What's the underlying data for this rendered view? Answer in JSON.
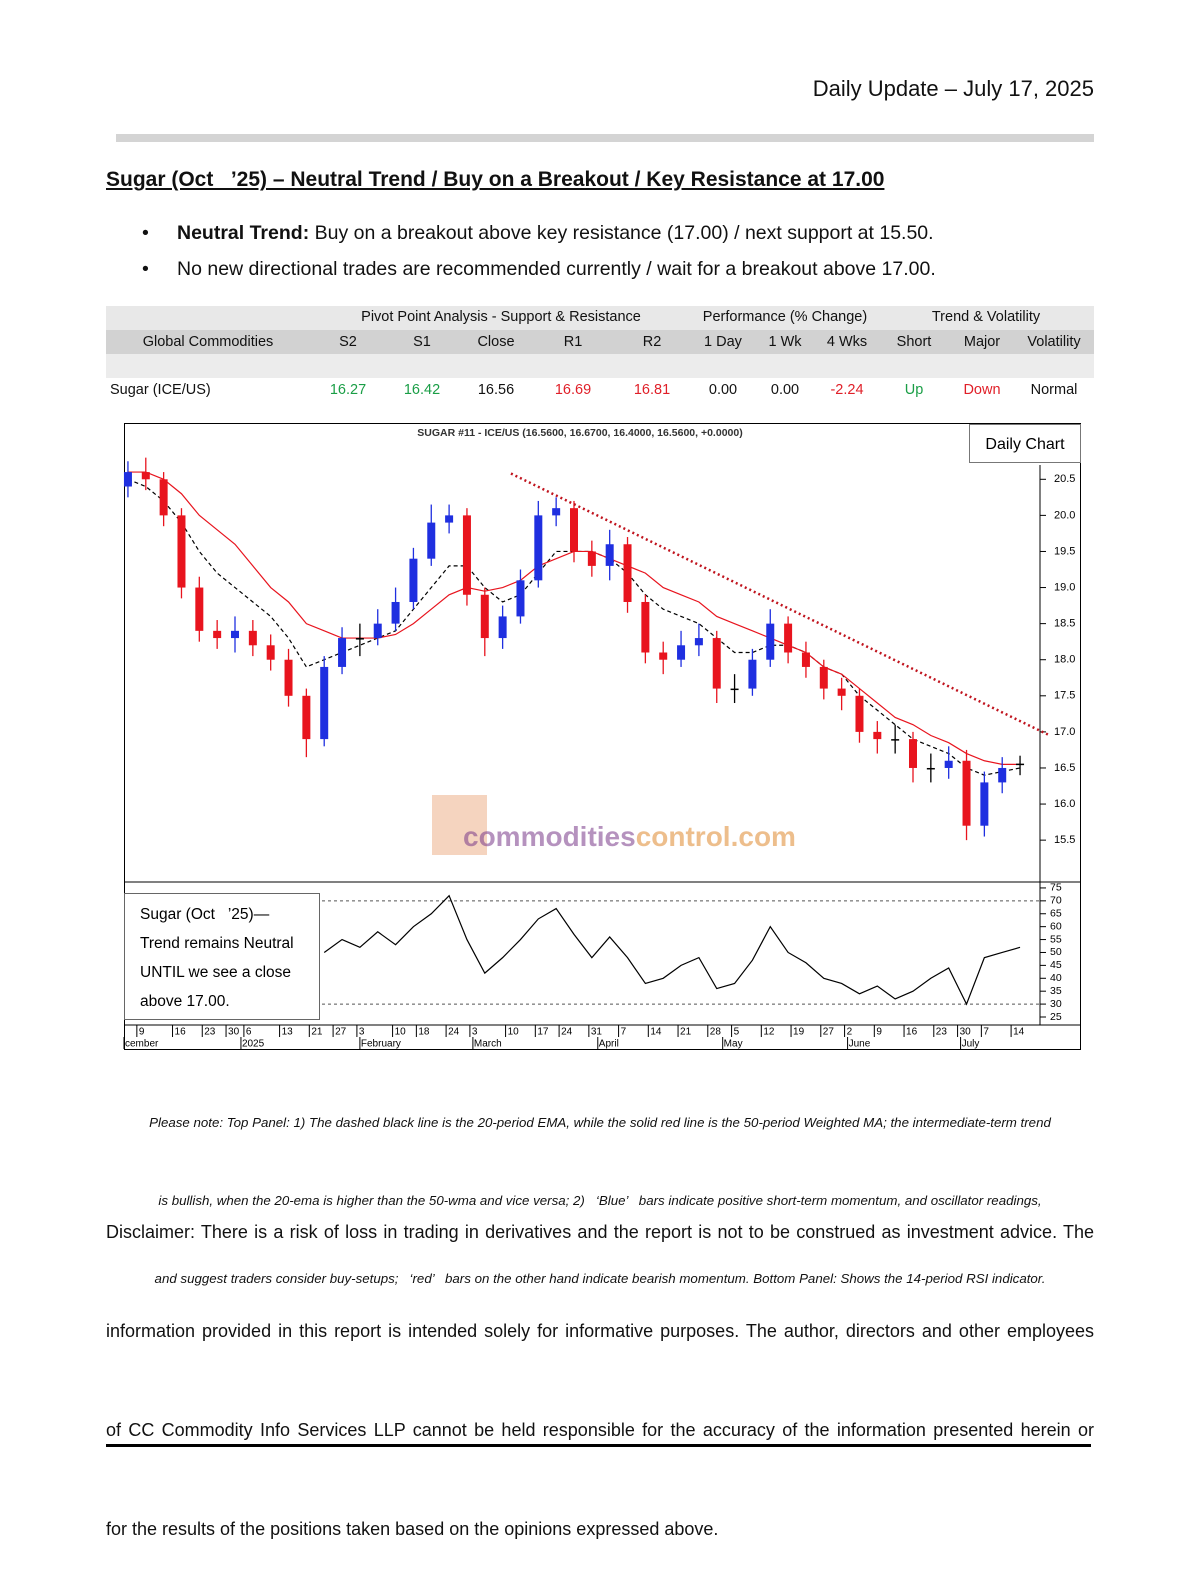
{
  "header": {
    "date": "Daily Update – July 17, 2025"
  },
  "title": "Sugar (Oct   ’25) – Neutral Trend / Buy on a Breakout / Key Resistance at 17.00",
  "bullets": [
    {
      "label": "Neutral Trend:",
      "text": "Buy on a breakout above key resistance (17.00) / next support at 15.50."
    },
    {
      "text": "No new directional trades are recommended currently / wait for a breakout above 17.00."
    }
  ],
  "table": {
    "group_headers": [
      "Pivot Point Analysis - Support & Resistance",
      "Performance (% Change)",
      "Trend & Volatility"
    ],
    "columns": [
      "Global Commodities",
      "S2",
      "S1",
      "Close",
      "R1",
      "R2",
      "1 Day",
      "1 Wk",
      "4 Wks",
      "Short",
      "Major",
      "Volatility"
    ],
    "rows": [
      [
        "Sugar (ICE/US)",
        "16.27",
        "16.42",
        "16.56",
        "16.69",
        "16.81",
        "0.00",
        "0.00",
        "-2.24",
        "Up",
        "Down",
        "Normal"
      ]
    ]
  },
  "chart_data": {
    "type": "candlestick",
    "title": "SUGAR #11 - ICE/US (16.5600, 16.6700, 16.4000, 16.5600, +0.0000)",
    "annotation": "Daily Chart",
    "watermark": [
      "commodities",
      "control.com"
    ],
    "x": [
      0,
      3,
      6,
      9,
      12,
      15,
      18,
      21,
      24,
      27,
      30,
      33,
      36,
      39,
      42,
      45,
      48,
      51,
      54,
      57,
      60,
      63,
      66,
      69,
      72,
      75,
      78,
      81,
      84,
      87,
      90,
      93,
      96,
      99,
      102,
      105,
      108,
      111,
      114,
      117,
      120,
      123,
      126,
      129,
      132,
      135,
      138,
      141,
      144,
      147,
      150
    ],
    "open": [
      20.4,
      20.6,
      20.5,
      20.0,
      19.0,
      18.4,
      18.3,
      18.4,
      18.2,
      18.0,
      17.5,
      16.9,
      17.9,
      18.3,
      18.3,
      18.5,
      18.8,
      19.4,
      19.9,
      20.0,
      18.9,
      18.3,
      18.6,
      19.1,
      20.0,
      20.1,
      19.5,
      19.3,
      19.6,
      18.8,
      18.1,
      18.0,
      18.2,
      18.3,
      17.6,
      17.6,
      18.0,
      18.5,
      18.1,
      17.9,
      17.6,
      17.5,
      17.0,
      16.9,
      16.9,
      16.5,
      16.5,
      16.6,
      15.7,
      16.3,
      16.56
    ],
    "high": [
      20.75,
      20.8,
      20.6,
      20.1,
      19.15,
      18.55,
      18.6,
      18.55,
      18.35,
      18.15,
      17.6,
      18.05,
      18.45,
      18.5,
      18.7,
      19.0,
      19.55,
      20.15,
      20.15,
      20.1,
      19.0,
      18.75,
      19.25,
      20.2,
      20.25,
      20.2,
      19.65,
      19.8,
      19.7,
      18.9,
      18.25,
      18.4,
      18.5,
      18.4,
      17.8,
      18.15,
      18.7,
      18.6,
      18.25,
      18.0,
      17.75,
      17.6,
      17.15,
      17.1,
      17.0,
      16.7,
      16.8,
      16.75,
      16.45,
      16.65,
      16.67
    ],
    "low": [
      20.25,
      20.35,
      19.85,
      18.85,
      18.25,
      18.15,
      18.1,
      18.05,
      17.85,
      17.35,
      16.65,
      16.8,
      17.8,
      18.05,
      18.2,
      18.4,
      18.7,
      19.3,
      19.75,
      18.75,
      18.05,
      18.15,
      18.5,
      19.0,
      19.85,
      19.35,
      19.15,
      19.1,
      18.65,
      17.95,
      17.8,
      17.9,
      18.05,
      17.4,
      17.4,
      17.5,
      17.9,
      17.95,
      17.75,
      17.45,
      17.3,
      16.85,
      16.7,
      16.7,
      16.3,
      16.3,
      16.35,
      15.5,
      15.55,
      16.15,
      16.4
    ],
    "close": [
      20.6,
      20.5,
      20.0,
      19.0,
      18.4,
      18.3,
      18.4,
      18.2,
      18.0,
      17.5,
      16.9,
      17.9,
      18.3,
      18.3,
      18.5,
      18.8,
      19.4,
      19.9,
      20.0,
      18.9,
      18.3,
      18.6,
      19.1,
      20.0,
      20.1,
      19.5,
      19.3,
      19.6,
      18.8,
      18.1,
      18.0,
      18.2,
      18.3,
      17.6,
      17.6,
      18.0,
      18.5,
      18.1,
      17.9,
      17.6,
      17.5,
      17.0,
      16.9,
      16.9,
      16.5,
      16.5,
      16.6,
      15.7,
      16.3,
      16.5,
      16.56
    ],
    "up_color": "#1f2fe0",
    "down_color": "#e8141e",
    "flat_color": "#000000",
    "lines": [
      {
        "color": "#000000",
        "dashed": true,
        "values": [
          20.5,
          20.4,
          20.2,
          19.9,
          19.5,
          19.2,
          19.0,
          18.8,
          18.6,
          18.3,
          17.9,
          18.0,
          18.1,
          18.2,
          18.3,
          18.4,
          18.7,
          19.0,
          19.3,
          19.3,
          19.0,
          18.8,
          18.9,
          19.2,
          19.5,
          19.5,
          19.5,
          19.4,
          19.2,
          18.9,
          18.7,
          18.6,
          18.5,
          18.3,
          18.1,
          18.1,
          18.2,
          18.2,
          18.1,
          17.9,
          17.8,
          17.5,
          17.3,
          17.1,
          16.9,
          16.8,
          16.7,
          16.5,
          16.4,
          16.45,
          16.5
        ]
      },
      {
        "color": "#e8141e",
        "dashed": false,
        "values": [
          20.6,
          20.6,
          20.5,
          20.3,
          20.0,
          19.8,
          19.6,
          19.3,
          19.0,
          18.8,
          18.5,
          18.4,
          18.3,
          18.3,
          18.3,
          18.35,
          18.5,
          18.7,
          18.9,
          19.0,
          18.95,
          19.0,
          19.1,
          19.3,
          19.4,
          19.5,
          19.5,
          19.4,
          19.3,
          19.2,
          19.0,
          18.9,
          18.8,
          18.6,
          18.5,
          18.4,
          18.3,
          18.2,
          18.1,
          17.9,
          17.8,
          17.6,
          17.4,
          17.2,
          17.1,
          16.95,
          16.85,
          16.7,
          16.6,
          16.55,
          16.55
        ]
      }
    ],
    "trendline": {
      "x": [
        64.4,
        155
      ],
      "y": [
        20.58,
        16.95
      ],
      "color": "#c0141e"
    },
    "xlim": [
      -1,
      151
    ],
    "ylim": [
      14.92,
      21.28
    ],
    "yticks": [
      {
        "value": 15.5,
        "label": "15.5"
      },
      {
        "value": 16,
        "label": "16.0"
      },
      16.5,
      {
        "value": 17,
        "label": "17.0"
      },
      17.5,
      {
        "value": 18,
        "label": "18.0"
      },
      18.5,
      {
        "value": 19,
        "label": "19.0"
      },
      19.5,
      {
        "value": 20,
        "label": "20.0"
      },
      20.5
    ],
    "xticks": [
      {
        "value": 2,
        "label": "9"
      },
      {
        "value": 8,
        "label": "16"
      },
      {
        "value": 13,
        "label": "23"
      },
      {
        "value": 17,
        "label": "30"
      },
      {
        "value": 20,
        "label": "6"
      },
      {
        "value": 26,
        "label": "13"
      },
      {
        "value": 31,
        "label": "21"
      },
      {
        "value": 35,
        "label": "27"
      },
      {
        "value": 39,
        "label": "3"
      },
      {
        "value": 45,
        "label": "10"
      },
      {
        "value": 49,
        "label": "18"
      },
      {
        "value": 54,
        "label": "24"
      },
      {
        "value": 58,
        "label": "3"
      },
      {
        "value": 64,
        "label": "10"
      },
      {
        "value": 69,
        "label": "17"
      },
      {
        "value": 73,
        "label": "24"
      },
      {
        "value": 78,
        "label": "31"
      },
      {
        "value": 83,
        "label": "7"
      },
      {
        "value": 88,
        "label": "14"
      },
      {
        "value": 93,
        "label": "21"
      },
      {
        "value": 98,
        "label": "28"
      },
      {
        "value": 102,
        "label": "5"
      },
      {
        "value": 107,
        "label": "12"
      },
      {
        "value": 112,
        "label": "19"
      },
      {
        "value": 117,
        "label": "27"
      },
      {
        "value": 121,
        "label": "2"
      },
      {
        "value": 126,
        "label": "9"
      },
      {
        "value": 131,
        "label": "16"
      },
      {
        "value": 136,
        "label": "23"
      },
      {
        "value": 140,
        "label": "30"
      },
      {
        "value": 144,
        "label": "7"
      },
      {
        "value": 149,
        "label": "14"
      }
    ],
    "month_labels": [
      {
        "value": -1,
        "label": "cember"
      },
      {
        "value": 19,
        "label": "2025"
      },
      {
        "value": 39,
        "label": "February"
      },
      {
        "value": 58,
        "label": "March"
      },
      {
        "value": 79,
        "label": "April"
      },
      {
        "value": 100,
        "label": "May"
      },
      {
        "value": 121,
        "label": "June"
      },
      {
        "value": 140,
        "label": "July"
      }
    ],
    "rsi": {
      "values": [
        null,
        null,
        null,
        null,
        null,
        null,
        null,
        null,
        null,
        null,
        null,
        50,
        55,
        52,
        58,
        53,
        60,
        65,
        72,
        55,
        42,
        48,
        55,
        63,
        67,
        57,
        48,
        56,
        48,
        38,
        40,
        45,
        48,
        36,
        38,
        47,
        60,
        50,
        46,
        40,
        38,
        34,
        37,
        32,
        35,
        40,
        44,
        30,
        48,
        50,
        52
      ],
      "ylim": [
        21.9,
        77.3
      ],
      "yticks": [
        25,
        30,
        35,
        40,
        45,
        50,
        55,
        60,
        65,
        70,
        75
      ],
      "levels": [
        30,
        70
      ],
      "note": [
        "Sugar (Oct   ’25)—",
        "Trend remains Neutral",
        "UNTIL we see a close",
        "above 17.00."
      ]
    }
  },
  "note": [
    "Please note: Top Panel: 1) The dashed black line is the 20-period EMA, while the solid red line is the 50-period Weighted MA; the intermediate-term trend",
    "is bullish, when the 20-ema is higher than the 50-wma and vice versa; 2)   ‘Blue’   bars indicate positive short-term momentum, and oscillator readings,",
    "and suggest traders consider buy-setups;   ‘red’   bars on the other hand indicate bearish momentum. Bottom Panel: Shows the 14-period RSI indicator."
  ],
  "disclaimer": [
    "Disclaimer: There is a risk of loss in trading in derivatives and the report is not to be construed as investment advice. The",
    "information provided in this report is intended solely for informative purposes. The author, directors and other employees",
    "of CC Commodity Info Services LLP cannot be held responsible for the accuracy of the information presented herein or",
    "for the results of the positions taken based on the opinions expressed above."
  ]
}
